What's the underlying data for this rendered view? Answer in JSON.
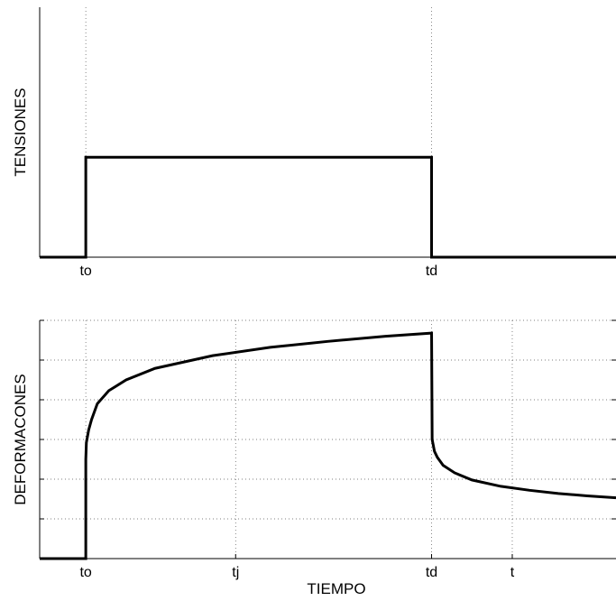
{
  "chart_data": [
    {
      "type": "line",
      "title": "",
      "xlabel": "",
      "ylabel": "TENSIONES",
      "xlim": [
        0,
        10
      ],
      "ylim": [
        0,
        2.5
      ],
      "grid": "vertical dotted lines at tick positions",
      "ticks": [
        {
          "x": 0.8,
          "label": "to"
        },
        {
          "x": 6.8,
          "label": "td"
        }
      ],
      "series": [
        {
          "color": "#000000",
          "x": [
            0,
            0.8,
            0.8,
            6.8,
            6.8,
            10
          ],
          "y": [
            0,
            0,
            1,
            1,
            0,
            0
          ]
        }
      ]
    },
    {
      "type": "line",
      "title": "",
      "xlabel": "TIEMPO",
      "ylabel": "DEFORMACONES",
      "xlim": [
        0,
        10
      ],
      "ylim": [
        0,
        6
      ],
      "grid": "dotted horizontal and vertical lines at tick positions",
      "ticks": [
        {
          "x": 0.8,
          "label": "to"
        },
        {
          "x": 3.4,
          "label": "tj"
        },
        {
          "x": 6.8,
          "label": "td"
        },
        {
          "x": 8.2,
          "label": "t"
        }
      ],
      "yticks": [
        1,
        2,
        3,
        4,
        5,
        6
      ],
      "series": [
        {
          "color": "#000000",
          "x": [
            0,
            0.8,
            0.8,
            0.81,
            0.85,
            0.9,
            1.0,
            1.2,
            1.5,
            2.0,
            3.0,
            4.0,
            5.0,
            6.0,
            6.8,
            6.8,
            6.81,
            6.85,
            6.9,
            7.0,
            7.2,
            7.5,
            8.0,
            8.5,
            9.0,
            9.5,
            10.0
          ],
          "y": [
            0,
            0,
            2.5,
            2.92,
            3.24,
            3.5,
            3.9,
            4.23,
            4.5,
            4.79,
            5.11,
            5.32,
            5.47,
            5.6,
            5.68,
            5.68,
            3.0,
            2.7,
            2.55,
            2.35,
            2.16,
            1.98,
            1.82,
            1.72,
            1.64,
            1.58,
            1.53
          ]
        }
      ]
    }
  ]
}
